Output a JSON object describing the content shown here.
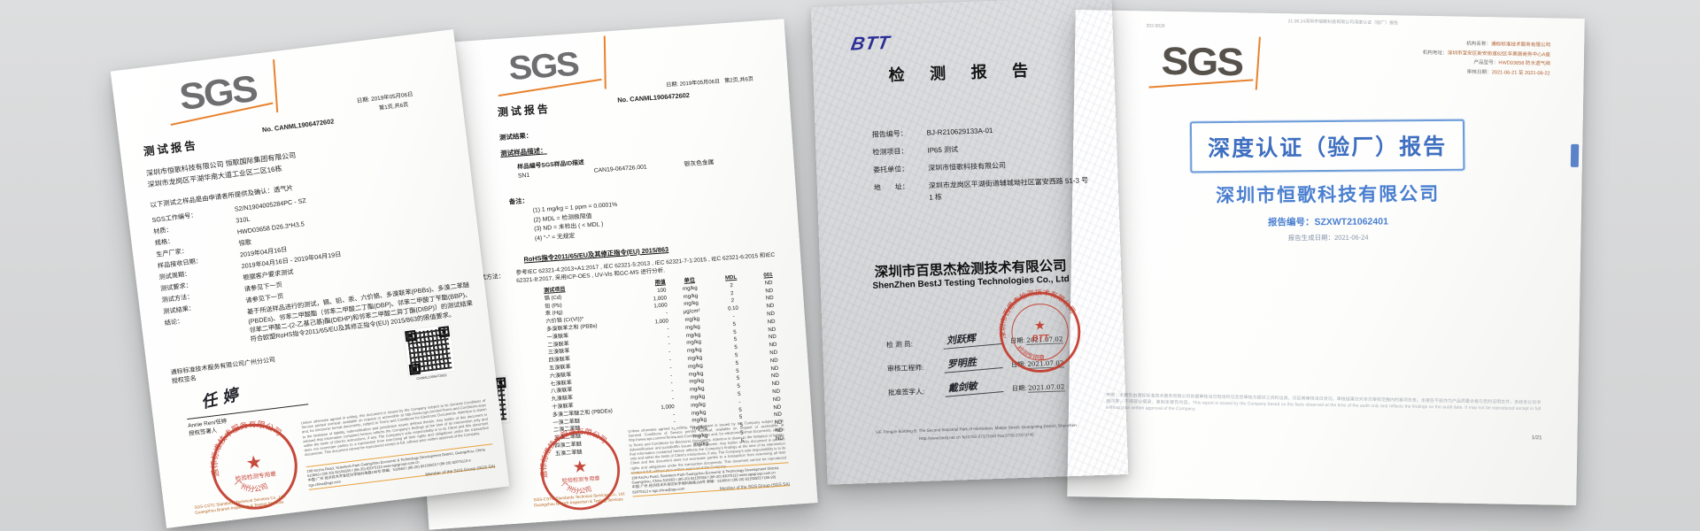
{
  "colors": {
    "background": "#d8d9da",
    "sgs_gray": "#6e6e71",
    "sgs_orange": "#e8822d",
    "btt_blue": "#2b2f96",
    "doc4_blue": "#4a7fd0",
    "stamp_red": "#c23a2b"
  },
  "sgs_footer": {
    "company1": "SGS-CSTC Standards Technical Services Co., Ltd.",
    "company2": "Guangzhou Branch  Inspection & Testing Services",
    "line1": "198 Kezhu Road, Scientech Park Guangzhou Economic & Technology Development District, Guangzhou, China 510663    t (86-20) 82155555    f (86-20) 82075113    www.sgsgroup.com.cn",
    "line2": "中国·广州·经济技术开发区科学城科珠路198号    邮编：510663    t (86-20) 82155555    f (86-20) 82075113    e sgs.china@sgs.com",
    "member": "Member of the SGS Group (SGS SA)",
    "disclaimer": "Unless otherwise agreed in writing, this document is issued by the Company subject to its General Conditions of Service printed overleaf, available on request or accessible at http://www.sgs.com/en/Terms-and-Conditions.aspx and, for electronic format documents, subject to Terms and Conditions for Electronic Documents. Attention is drawn to the limitation of liability, indemnification and jurisdiction issues defined therein. Any holder of this document is advised that information contained hereon reflects the Company's findings at the time of its intervention only and within the limits of Client's instructions, if any. The Company's sole responsibility is to its Client and this document does not exonerate parties to a transaction from exercising all their rights and obligations under the transaction documents. This document cannot be reproduced except in full, without prior written approval of the Company."
  },
  "sgs_stamp": {
    "arc_top": "通标标准技术服务有限公司",
    "arc_bottom": "广州分公司",
    "center_star": "★",
    "center": "检验检测专用章"
  },
  "btt_stamp": {
    "arc_top": "深圳市百思杰检测技术有限公司",
    "arc_bottom": "检测专用章",
    "center_star": "★",
    "center": "BTT"
  },
  "doc1": {
    "logo": "SGS",
    "title": "测试报告",
    "report_no": "No. CANML1906472602",
    "date": "日期: 2019年05月06日",
    "page": "第1页,共6页",
    "client_line1": "深圳市恒歌科技有限公司 恒歌国际集团有限公司",
    "client_line2": "深圳市龙岗区平湖华南大道工业区二区16栋",
    "intro": "以下测试之样品是由申请者所提供及确认：透气片",
    "fields": [
      {
        "label": "SGS工作编号：",
        "value": "S2/N1904005284PC - SZ"
      },
      {
        "label": "材质：",
        "value": "310L"
      },
      {
        "label": "规格：",
        "value": "HWD03658 D26.3*H3.5"
      },
      {
        "label": "生产厂家：",
        "value": "恒歌"
      },
      {
        "label": "样品接收日期：",
        "value": "2019年04月16日"
      },
      {
        "label": "测试周期：",
        "value": "2019年04月16日 - 2019年04月19日"
      },
      {
        "label": "测试要求：",
        "value": "根据客户要求测试"
      },
      {
        "label": "测试方法：",
        "value": "请参见下一页"
      },
      {
        "label": "测试结果：",
        "value": "请参见下一页"
      },
      {
        "label": "结论：",
        "value": "基于所送样品进行的测试，镉、铅、汞、六价铬、多溴联苯(PBBs)、多溴二苯醚(PBDEs)、邻苯二甲酸酯（邻苯二甲酸二丁酯(DBP)、邻苯二甲酸丁苄酯(BBP)、邻苯二甲酸二-(2-乙基己基)酯(DEHP)和邻苯二甲酸二异丁酯(DIBP)）的测试结果符合欧盟RoHS指令2011/65/EU及其修正指令(EU) 2015/863的限值要求。"
      }
    ],
    "signer_company": "通标标准技术服务有限公司广州分公司",
    "sign_label": "授权签名",
    "signature": "任 婷",
    "signer_name": "Annie Ren/任婷",
    "signer_title": "授权签署人",
    "qr_caption": "CANML1906472602"
  },
  "doc2": {
    "logo": "SGS",
    "title": "测试报告",
    "report_no": "No. CANML1906472602",
    "date": "日期: 2019年05月06日",
    "page": "第2页,共6页",
    "results_label": "测试结果：",
    "sample_desc_label": "测试样品描述：",
    "sample_table": {
      "headers": [
        "样品编号",
        "SGS样品ID",
        "描述"
      ],
      "rows": [
        [
          "SN1",
          "CAN19-064726.001",
          "银灰色金属"
        ]
      ]
    },
    "notes_label": "备注：",
    "notes": [
      "(1) 1 mg/kg = 1 ppm = 0.0001%",
      "(2) MDL = 检测极限值",
      "(3) ND = 未检出 ( < MDL )",
      "(4) \"-\" = 无规定"
    ],
    "section_heading": "RoHS指令2011/65/EU及其修正指令(EU) 2015/863",
    "method_label": "测试方法：",
    "method": "参考IEC 62321-4:2013+A1:2017 , IEC 62321-5:2013 , IEC 62321-7-1:2015 , IEC 62321-6:2015 和IEC 62321-8:2017, 采用ICP-OES , UV-Vis 和GC-MS 进行分析.",
    "rohs_table": {
      "headers": [
        "测试项目",
        "限值",
        "单位",
        "MDL",
        "001"
      ],
      "rows": [
        [
          "镉 (Cd)",
          "100",
          "mg/kg",
          "2",
          "ND"
        ],
        [
          "铅 (Pb)",
          "1,000",
          "mg/kg",
          "2",
          "ND"
        ],
        [
          "汞 (Hg)",
          "1,000",
          "mg/kg",
          "2",
          "ND"
        ],
        [
          "六价铬 (Cr(VI))*",
          "-",
          "μg/cm²",
          "0.10",
          "ND"
        ],
        [
          "多溴联苯之和 (PBBs)",
          "1,000",
          "mg/kg",
          "-",
          "ND"
        ],
        [
          "一溴联苯",
          "-",
          "mg/kg",
          "5",
          "ND"
        ],
        [
          "二溴联苯",
          "-",
          "mg/kg",
          "5",
          "ND"
        ],
        [
          "三溴联苯",
          "-",
          "mg/kg",
          "5",
          "ND"
        ],
        [
          "四溴联苯",
          "-",
          "mg/kg",
          "5",
          "ND"
        ],
        [
          "五溴联苯",
          "-",
          "mg/kg",
          "5",
          "ND"
        ],
        [
          "六溴联苯",
          "-",
          "mg/kg",
          "5",
          "ND"
        ],
        [
          "七溴联苯",
          "-",
          "mg/kg",
          "5",
          "ND"
        ],
        [
          "八溴联苯",
          "-",
          "mg/kg",
          "5",
          "ND"
        ],
        [
          "九溴联苯",
          "-",
          "mg/kg",
          "5",
          "ND"
        ],
        [
          "十溴联苯",
          "-",
          "mg/kg",
          "5",
          "ND"
        ],
        [
          "多溴二苯醚之和 (PBDEs)",
          "1,000",
          "mg/kg",
          "-",
          "ND"
        ],
        [
          "一溴二苯醚",
          "-",
          "mg/kg",
          "5",
          "ND"
        ],
        [
          "二溴二苯醚",
          "-",
          "mg/kg",
          "5",
          "ND"
        ],
        [
          "三溴二苯醚",
          "-",
          "mg/kg",
          "5",
          "ND"
        ],
        [
          "四溴二苯醚",
          "-",
          "mg/kg",
          "5",
          "ND"
        ],
        [
          "五溴二苯醚",
          "-",
          "mg/kg",
          "5",
          "ND"
        ]
      ]
    },
    "qr_caption": "CANML1906472602"
  },
  "doc3": {
    "logo": "BTT",
    "title": "检 测 报 告",
    "fields": [
      {
        "label": "报告编号：",
        "value": "BJ-R210629133A-01"
      },
      {
        "label": "检测项目：",
        "value": "IP65 测试"
      },
      {
        "label": "委托单位：",
        "value": "深圳市恒歌科技有限公司"
      },
      {
        "label": "地　　址：",
        "value": "深圳市龙岗区平湖街道辅城坳社区富安西路 51-3 号 1 栋"
      }
    ],
    "company_cn": "深圳市百思杰检测技术有限公司",
    "company_en": "ShenZhen BestJ Testing Technologies Co., Ltd",
    "sign_rows": [
      {
        "label": "检  测  员:",
        "signature": "刘跃辉",
        "date_label": "日期:",
        "date": "2021.07.02"
      },
      {
        "label": "审核工程师:",
        "signature": "罗明胜",
        "date_label": "日期:",
        "date": "2021.07.02"
      },
      {
        "label": "批准签字人:",
        "signature": "戴剑敏",
        "date_label": "日期:",
        "date": "2021.07.02"
      }
    ],
    "footer_line1": "5/F, Fengze Building B, The Second Industrial Park of Heshuikou, Matian Street, Guangming District, Shenzhen",
    "footer_line2": "Http://www.bestj.net.cn      Tel:0755-27373343      Fax:0755-27373745"
  },
  "doc4": {
    "logo": "SGS",
    "corner_code": "202-0026",
    "top_note": "21.06.24深圳市恒歌科技有限公司深度认证（验厂）报告",
    "info_lines": [
      {
        "label": "机构名称：",
        "value": "通标标准技术服务有限公司"
      },
      {
        "label": "机构地址：",
        "value": "深圳市宝安区新安街道82区华美居商务中心A座"
      },
      {
        "label": "产品型号：",
        "value": "HWD03658 防水透气阀"
      },
      {
        "label": "审核日期：",
        "value": "2021-06-21 至 2021-06-22"
      }
    ],
    "banner": "深度认证（验厂）报告",
    "company": "深圳市恒歌科技有限公司",
    "report_no": "报告编号：SZXWT21062401",
    "gen_date": "报告生成日期：2021-06-24",
    "disclaimer": "声明：本报告由通标标准技术服务有限公司依据审核当日现场所见及受审核方提供之资料出具，仅反映审核当日状况，审核结果仅对本次审核范围内的事项负责。本报告不能作为产品质量合格与否的证明文件，未经本公司书面同意，不得部分摘录、复制本报告内容。This report is issued by the Company based on the facts observed at the time of the audit only and reflects the findings on the audit date. It may not be reproduced except in full without prior written approval of the Company.",
    "page_no": "1/21"
  }
}
